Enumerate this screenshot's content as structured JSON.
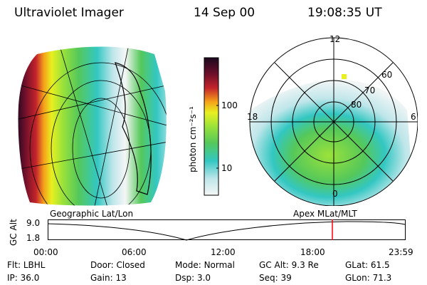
{
  "header": {
    "title": "Ultraviolet Imager",
    "date": "14 Sep 00",
    "time": "19:08:35 UT"
  },
  "colorbar": {
    "unit_label": "photon cm⁻²s⁻¹",
    "ticks": [
      "100",
      "10"
    ]
  },
  "geo_panel": {
    "label": "Geographic Lat/Lon"
  },
  "polar_panel": {
    "label": "Apex  MLat/MLT",
    "mlt_labels": [
      "12",
      "18",
      "6",
      "0"
    ],
    "lat_labels": [
      "60",
      "70",
      "80"
    ]
  },
  "altitude_plot": {
    "ylabel": "GC Alt",
    "yticks": [
      "9.0",
      "1.8"
    ],
    "xticks": [
      "00:00",
      "06:00",
      "12:00",
      "18:00",
      "23:59"
    ],
    "marker_time": "19:08:35",
    "marker_color": "#ff0000"
  },
  "status": {
    "row1": [
      {
        "label": "Flt:",
        "value": "LBHL"
      },
      {
        "label": "Door:",
        "value": "Closed"
      },
      {
        "label": "Mode:",
        "value": "Normal"
      },
      {
        "label": "GC Alt:",
        "value": "9.3 Re"
      },
      {
        "label": "GLat:",
        "value": "61.5"
      }
    ],
    "row2": [
      {
        "label": "IP:",
        "value": "36.0"
      },
      {
        "label": "Gain:",
        "value": "13"
      },
      {
        "label": "Dsp:",
        "value": "3.0"
      },
      {
        "label": "Seq:",
        "value": "39"
      },
      {
        "label": "GLon:",
        "value": "71.3"
      }
    ]
  },
  "colors": {
    "scale": [
      "#f4f6f6",
      "#bfe6ea",
      "#33c7c2",
      "#55c85a",
      "#9be23a",
      "#e8f020",
      "#f5a11a",
      "#c4232b",
      "#6e0f2a",
      "#1a0a1f"
    ]
  }
}
